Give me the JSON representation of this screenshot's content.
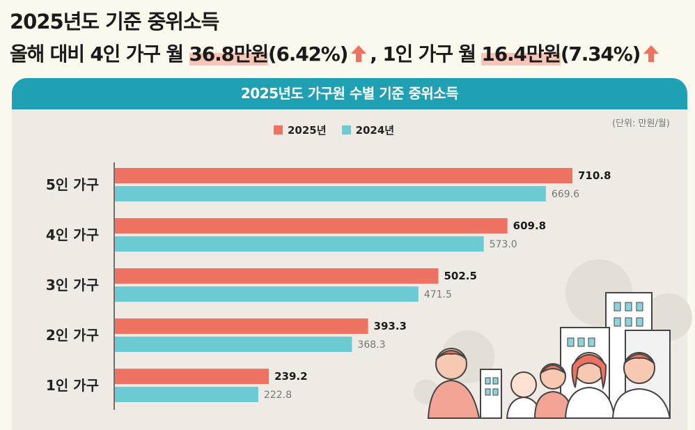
{
  "headline": {
    "line1": "2025년도 기준 중위소득",
    "line2_prefix": "올해 대비 4인 가구 월 ",
    "line2_hl1": "36.8만원",
    "line2_mid1": "(6.42%)",
    "line2_sep": ", 1인 가구 월 ",
    "line2_hl2": "16.4만원",
    "line2_mid2": "(7.34%)"
  },
  "panel_title": "2025년도 가구원 수별 기준 중위소득",
  "unit": "(단위: 만원/월)",
  "colors": {
    "current": "#ee7262",
    "previous": "#6ccad3",
    "header": "#1fa1b3",
    "arrow": "#ee7262"
  },
  "chart_data": {
    "type": "bar",
    "orientation": "horizontal",
    "categories": [
      "5인 가구",
      "4인 가구",
      "3인 가구",
      "2인 가구",
      "1인 가구"
    ],
    "series": [
      {
        "name": "2025년",
        "values": [
          710.8,
          609.8,
          502.5,
          393.3,
          239.2
        ],
        "value_labels": [
          "710.8",
          "609.8",
          "502.5",
          "393.3",
          "239.2"
        ]
      },
      {
        "name": "2024년",
        "values": [
          669.6,
          573.0,
          471.5,
          368.3,
          222.8
        ],
        "value_labels": [
          "669.6",
          "573.0",
          "471.5",
          "368.3",
          "222.8"
        ]
      }
    ],
    "xlim": [
      0,
      710.8
    ],
    "legend": "top-center",
    "grid": false
  }
}
